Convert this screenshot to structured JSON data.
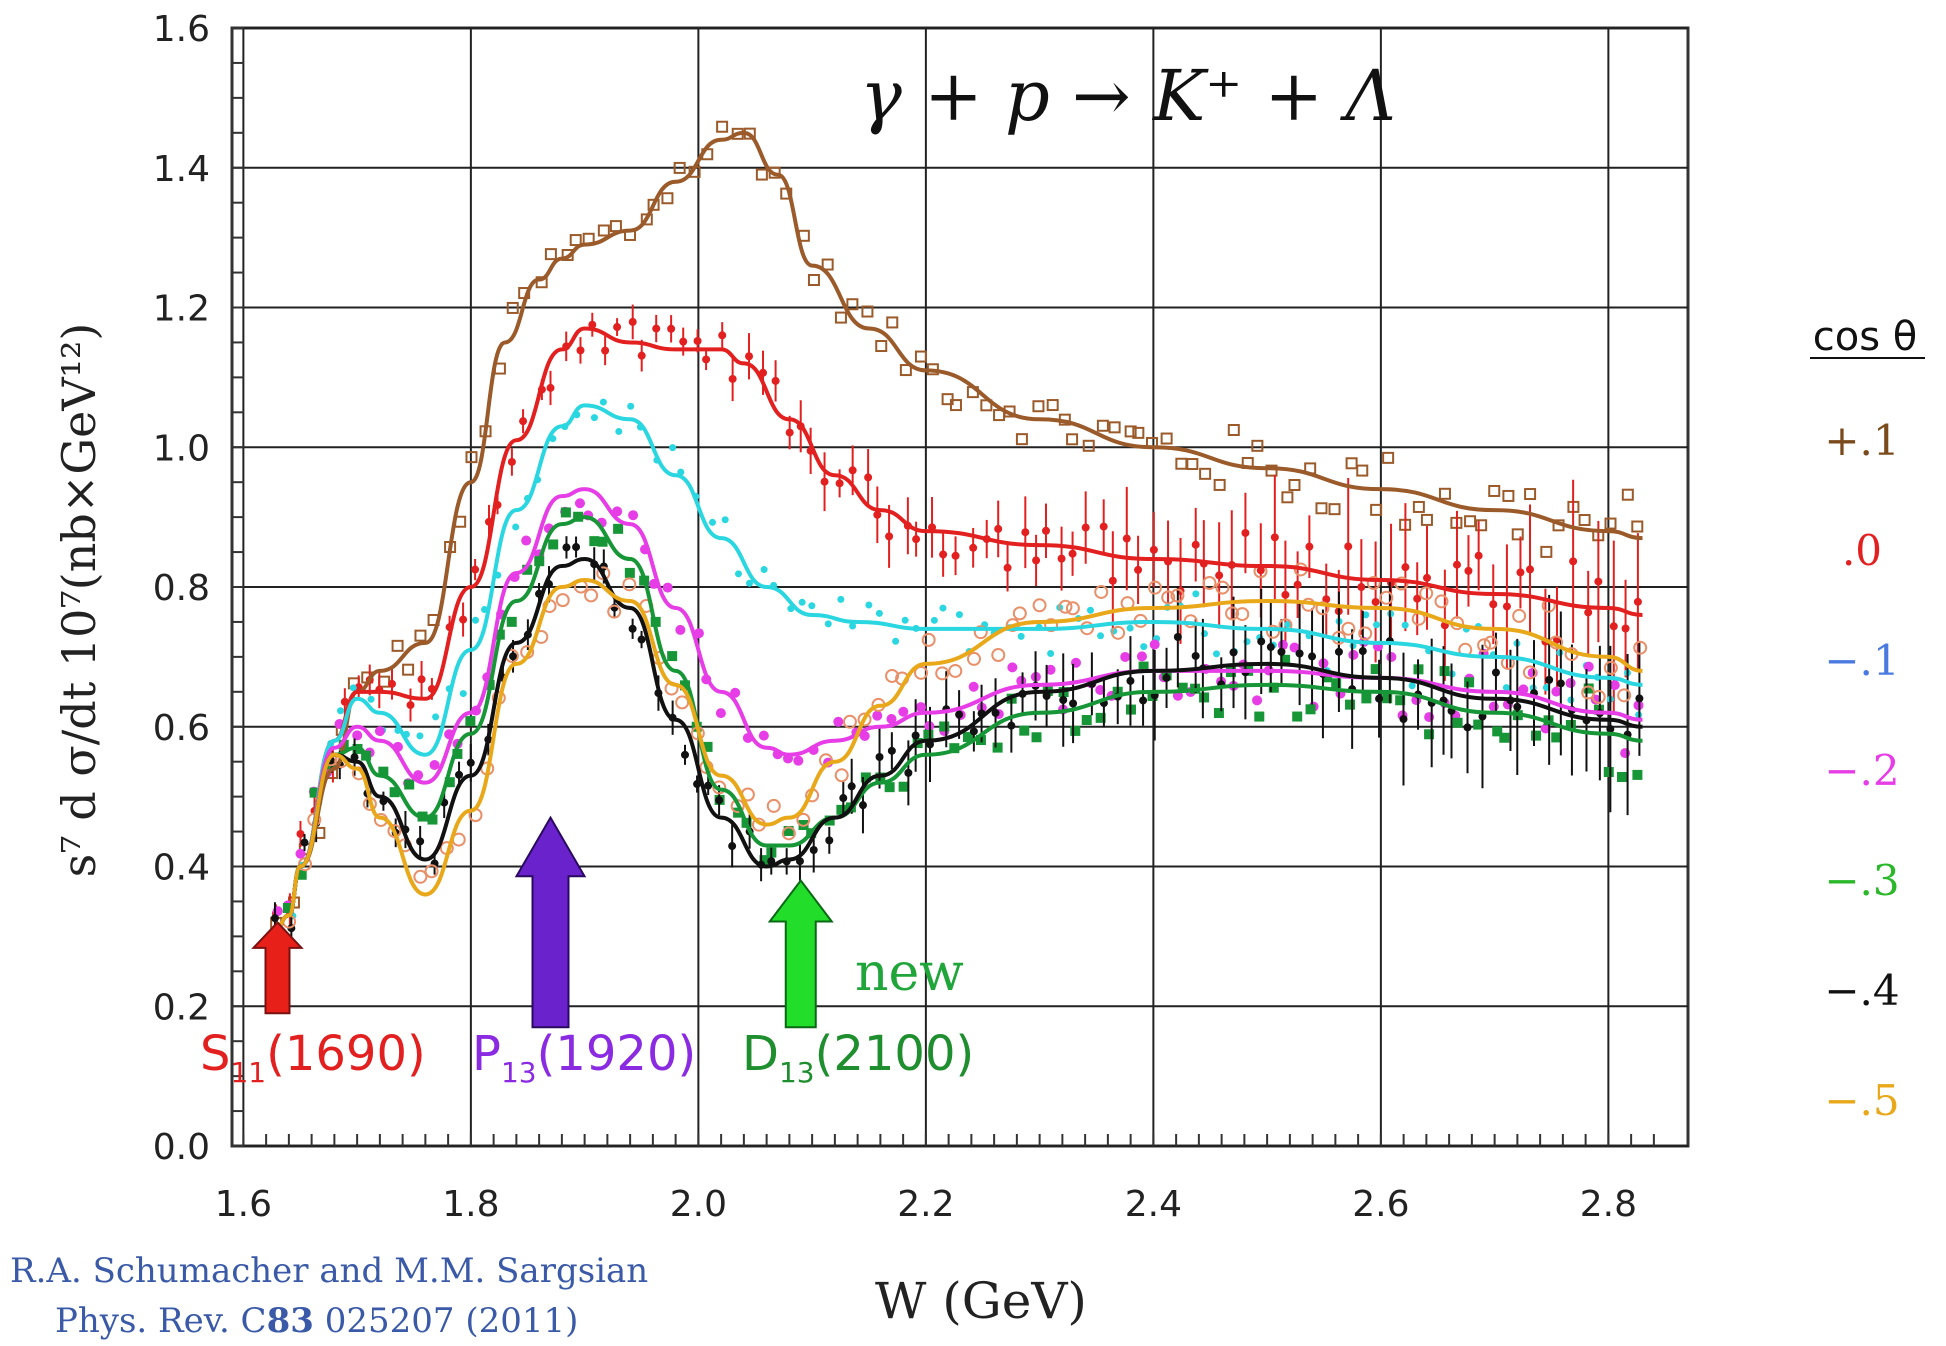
{
  "chart_data": {
    "type": "scatter",
    "title": "γ + p → K⁺ + Λ",
    "xlabel": "W (GeV)",
    "ylabel": "s⁷ d σ/dt 10⁷(nb×GeV¹²)",
    "xlim": [
      1.59,
      2.87
    ],
    "ylim": [
      0.0,
      1.6
    ],
    "xticks": [
      "1.6",
      "1.8",
      "2.0",
      "2.2",
      "2.4",
      "2.6",
      "2.8"
    ],
    "yticks": [
      "0.0",
      "0.2",
      "0.4",
      "0.6",
      "0.8",
      "1.0",
      "1.2",
      "1.4",
      "1.6"
    ],
    "grid": true,
    "legend_title": "cos θ",
    "legend_position": "right",
    "series": [
      {
        "name": "+.1",
        "color": "#9b5a2a",
        "x": [
          1.625,
          1.64,
          1.65,
          1.68,
          1.7,
          1.72,
          1.76,
          1.8,
          1.83,
          1.86,
          1.88,
          1.9,
          1.94,
          1.98,
          2.02,
          2.04,
          2.07,
          2.1,
          2.15,
          2.2,
          2.3,
          2.4,
          2.5,
          2.6,
          2.7,
          2.8,
          2.83
        ],
        "y": [
          0.3,
          0.33,
          0.4,
          0.54,
          0.65,
          0.68,
          0.72,
          0.95,
          1.15,
          1.24,
          1.27,
          1.29,
          1.31,
          1.38,
          1.44,
          1.45,
          1.39,
          1.26,
          1.17,
          1.11,
          1.04,
          1.0,
          0.97,
          0.94,
          0.91,
          0.88,
          0.87
        ]
      },
      {
        "name": ".0",
        "color": "#e32020",
        "x": [
          1.625,
          1.64,
          1.65,
          1.68,
          1.7,
          1.72,
          1.76,
          1.8,
          1.84,
          1.88,
          1.9,
          1.94,
          1.98,
          2.02,
          2.04,
          2.08,
          2.12,
          2.16,
          2.2,
          2.3,
          2.4,
          2.5,
          2.6,
          2.7,
          2.8,
          2.83
        ],
        "y": [
          0.3,
          0.33,
          0.4,
          0.58,
          0.65,
          0.65,
          0.64,
          0.8,
          1.01,
          1.14,
          1.17,
          1.15,
          1.14,
          1.14,
          1.12,
          1.04,
          0.96,
          0.91,
          0.88,
          0.86,
          0.84,
          0.83,
          0.81,
          0.79,
          0.77,
          0.76
        ]
      },
      {
        "name": "−.1",
        "color": "#2ad6e0",
        "x": [
          1.625,
          1.64,
          1.65,
          1.68,
          1.7,
          1.72,
          1.76,
          1.8,
          1.84,
          1.88,
          1.9,
          1.94,
          1.98,
          2.02,
          2.06,
          2.1,
          2.14,
          2.2,
          2.3,
          2.4,
          2.5,
          2.6,
          2.7,
          2.8,
          2.83
        ],
        "y": [
          0.3,
          0.33,
          0.4,
          0.58,
          0.64,
          0.62,
          0.56,
          0.71,
          0.91,
          1.03,
          1.06,
          1.04,
          0.96,
          0.87,
          0.8,
          0.76,
          0.75,
          0.74,
          0.74,
          0.75,
          0.74,
          0.72,
          0.7,
          0.67,
          0.66
        ]
      },
      {
        "name": "−.2",
        "color": "#e63de6",
        "x": [
          1.625,
          1.64,
          1.65,
          1.68,
          1.7,
          1.72,
          1.76,
          1.8,
          1.84,
          1.88,
          1.9,
          1.94,
          1.98,
          2.02,
          2.06,
          2.08,
          2.12,
          2.16,
          2.2,
          2.3,
          2.4,
          2.5,
          2.6,
          2.7,
          2.8,
          2.83
        ],
        "y": [
          0.3,
          0.33,
          0.4,
          0.57,
          0.6,
          0.58,
          0.52,
          0.62,
          0.82,
          0.93,
          0.94,
          0.89,
          0.77,
          0.65,
          0.57,
          0.56,
          0.58,
          0.6,
          0.62,
          0.66,
          0.68,
          0.68,
          0.67,
          0.65,
          0.62,
          0.61
        ]
      },
      {
        "name": "−.3",
        "color": "#179637",
        "x": [
          1.625,
          1.64,
          1.65,
          1.68,
          1.7,
          1.72,
          1.76,
          1.8,
          1.84,
          1.88,
          1.9,
          1.94,
          1.98,
          2.02,
          2.06,
          2.08,
          2.12,
          2.16,
          2.2,
          2.3,
          2.4,
          2.5,
          2.6,
          2.7,
          2.8,
          2.83
        ],
        "y": [
          0.3,
          0.33,
          0.4,
          0.56,
          0.57,
          0.53,
          0.47,
          0.59,
          0.78,
          0.89,
          0.9,
          0.84,
          0.68,
          0.51,
          0.43,
          0.43,
          0.47,
          0.52,
          0.56,
          0.62,
          0.65,
          0.66,
          0.65,
          0.62,
          0.59,
          0.58
        ]
      },
      {
        "name": "−.4",
        "color": "#111111",
        "x": [
          1.625,
          1.64,
          1.65,
          1.68,
          1.7,
          1.72,
          1.76,
          1.8,
          1.84,
          1.88,
          1.9,
          1.94,
          1.98,
          2.02,
          2.06,
          2.08,
          2.12,
          2.16,
          2.2,
          2.3,
          2.4,
          2.5,
          2.6,
          2.7,
          2.8,
          2.83
        ],
        "y": [
          0.3,
          0.33,
          0.4,
          0.56,
          0.55,
          0.5,
          0.41,
          0.53,
          0.72,
          0.83,
          0.84,
          0.77,
          0.61,
          0.47,
          0.4,
          0.41,
          0.47,
          0.53,
          0.58,
          0.65,
          0.68,
          0.69,
          0.67,
          0.64,
          0.61,
          0.6
        ]
      },
      {
        "name": "−.5",
        "color": "#e8a81a",
        "x": [
          1.625,
          1.64,
          1.65,
          1.68,
          1.7,
          1.72,
          1.76,
          1.8,
          1.84,
          1.88,
          1.9,
          1.94,
          1.98,
          2.02,
          2.06,
          2.08,
          2.12,
          2.16,
          2.2,
          2.3,
          2.4,
          2.5,
          2.6,
          2.7,
          2.8,
          2.83
        ],
        "y": [
          0.3,
          0.33,
          0.4,
          0.56,
          0.54,
          0.47,
          0.36,
          0.48,
          0.69,
          0.8,
          0.81,
          0.78,
          0.66,
          0.53,
          0.46,
          0.47,
          0.55,
          0.63,
          0.69,
          0.75,
          0.77,
          0.78,
          0.77,
          0.74,
          0.7,
          0.68
        ]
      }
    ],
    "annotations": [
      {
        "label": "S",
        "sub": "11",
        "tail": "(1690)",
        "color": "#e32020",
        "x": 1.63
      },
      {
        "label": "P",
        "sub": "13",
        "tail": "(1920)",
        "color": "#8a2be2",
        "x": 1.87
      },
      {
        "label": "D",
        "sub": "13",
        "tail": "(2100)",
        "color": "#1e8e2e",
        "x": 2.09
      }
    ],
    "new_label": "new",
    "citation_line1": "R.A. Schumacher and M.M. Sargsian",
    "citation_line2_a": "Phys. Rev. C",
    "citation_line2_b": "83",
    "citation_line2_c": " 025207 (2011)"
  }
}
